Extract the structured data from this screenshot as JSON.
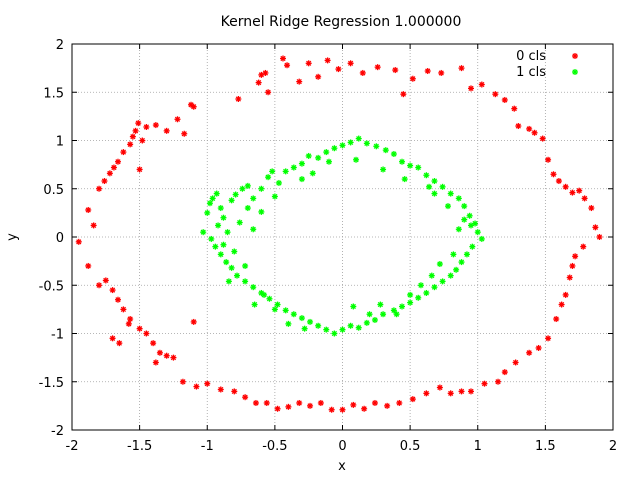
{
  "chart_data": {
    "type": "scatter",
    "title": "Kernel Ridge Regression 1.000000",
    "xlabel": "x",
    "ylabel": "y",
    "xlim": [
      -2,
      2
    ],
    "ylim": [
      -2,
      2
    ],
    "xticks": [
      "-2",
      "-1.5",
      "-1",
      "-0.5",
      "0",
      "0.5",
      "1",
      "1.5",
      "2"
    ],
    "yticks": [
      "-2",
      "-1.5",
      "-1",
      "-0.5",
      "0",
      "0.5",
      "1",
      "1.5",
      "2"
    ],
    "grid": true,
    "legend_position": "top-right",
    "series": [
      {
        "name": "0 cls",
        "color": "#ff0000",
        "marker": "star",
        "points": [
          [
            -1.95,
            -0.05
          ],
          [
            -1.88,
            0.28
          ],
          [
            -1.84,
            0.12
          ],
          [
            -1.8,
            0.5
          ],
          [
            -1.76,
            0.58
          ],
          [
            -1.72,
            0.66
          ],
          [
            -1.69,
            0.72
          ],
          [
            -1.66,
            0.78
          ],
          [
            -1.62,
            0.88
          ],
          [
            -1.57,
            0.96
          ],
          [
            -1.55,
            1.04
          ],
          [
            -1.53,
            1.1
          ],
          [
            -1.51,
            1.18
          ],
          [
            -1.48,
            1.0
          ],
          [
            -1.5,
            0.7
          ],
          [
            -1.45,
            1.14
          ],
          [
            -1.38,
            1.16
          ],
          [
            -1.3,
            1.1
          ],
          [
            -1.22,
            1.22
          ],
          [
            -1.17,
            1.07
          ],
          [
            -1.1,
            1.35
          ],
          [
            -1.12,
            1.37
          ],
          [
            -0.77,
            1.43
          ],
          [
            -0.62,
            1.6
          ],
          [
            -0.6,
            1.68
          ],
          [
            -0.57,
            1.7
          ],
          [
            -0.55,
            1.5
          ],
          [
            -0.44,
            1.85
          ],
          [
            -0.41,
            1.78
          ],
          [
            -0.32,
            1.61
          ],
          [
            -0.25,
            1.8
          ],
          [
            -0.18,
            1.66
          ],
          [
            -0.11,
            1.83
          ],
          [
            -0.03,
            1.74
          ],
          [
            0.06,
            1.8
          ],
          [
            0.15,
            1.7
          ],
          [
            0.26,
            1.76
          ],
          [
            0.39,
            1.73
          ],
          [
            0.45,
            1.48
          ],
          [
            0.52,
            1.64
          ],
          [
            0.63,
            1.72
          ],
          [
            0.73,
            1.7
          ],
          [
            0.88,
            1.75
          ],
          [
            0.95,
            1.54
          ],
          [
            1.03,
            1.58
          ],
          [
            1.13,
            1.48
          ],
          [
            1.2,
            1.42
          ],
          [
            1.27,
            1.33
          ],
          [
            1.3,
            1.15
          ],
          [
            1.38,
            1.12
          ],
          [
            1.42,
            1.08
          ],
          [
            1.48,
            1.02
          ],
          [
            1.52,
            0.8
          ],
          [
            1.56,
            0.65
          ],
          [
            1.6,
            0.58
          ],
          [
            1.65,
            0.52
          ],
          [
            1.7,
            0.46
          ],
          [
            1.75,
            0.48
          ],
          [
            1.79,
            0.4
          ],
          [
            1.84,
            0.3
          ],
          [
            1.87,
            0.1
          ],
          [
            1.9,
            0.0
          ],
          [
            1.78,
            -0.1
          ],
          [
            1.72,
            -0.2
          ],
          [
            1.7,
            -0.3
          ],
          [
            1.68,
            -0.42
          ],
          [
            1.65,
            -0.6
          ],
          [
            1.62,
            -0.7
          ],
          [
            1.58,
            -0.85
          ],
          [
            1.52,
            -1.05
          ],
          [
            1.45,
            -1.15
          ],
          [
            1.38,
            -1.2
          ],
          [
            1.28,
            -1.3
          ],
          [
            1.2,
            -1.4
          ],
          [
            1.15,
            -1.5
          ],
          [
            1.05,
            -1.52
          ],
          [
            0.95,
            -1.6
          ],
          [
            0.88,
            -1.6
          ],
          [
            0.8,
            -1.62
          ],
          [
            0.72,
            -1.56
          ],
          [
            0.62,
            -1.62
          ],
          [
            0.52,
            -1.68
          ],
          [
            0.42,
            -1.72
          ],
          [
            0.33,
            -1.75
          ],
          [
            0.24,
            -1.72
          ],
          [
            0.16,
            -1.78
          ],
          [
            0.08,
            -1.74
          ],
          [
            0.0,
            -1.79
          ],
          [
            -0.08,
            -1.79
          ],
          [
            -0.16,
            -1.72
          ],
          [
            -0.24,
            -1.75
          ],
          [
            -0.32,
            -1.72
          ],
          [
            -0.4,
            -1.76
          ],
          [
            -0.48,
            -1.78
          ],
          [
            -0.56,
            -1.72
          ],
          [
            -0.64,
            -1.72
          ],
          [
            -0.72,
            -1.66
          ],
          [
            -0.8,
            -1.6
          ],
          [
            -0.9,
            -1.58
          ],
          [
            -1.0,
            -1.52
          ],
          [
            -1.08,
            -1.55
          ],
          [
            -1.18,
            -1.5
          ],
          [
            -1.25,
            -1.25
          ],
          [
            -1.3,
            -1.23
          ],
          [
            -1.35,
            -1.2
          ],
          [
            -1.4,
            -1.1
          ],
          [
            -1.45,
            -1.0
          ],
          [
            -1.5,
            -0.95
          ],
          [
            -1.57,
            -0.85
          ],
          [
            -1.62,
            -0.75
          ],
          [
            -1.66,
            -0.65
          ],
          [
            -1.7,
            -0.55
          ],
          [
            -1.75,
            -0.45
          ],
          [
            -1.8,
            -0.5
          ],
          [
            -1.88,
            -0.3
          ],
          [
            -1.7,
            -1.05
          ],
          [
            -1.65,
            -1.1
          ],
          [
            -1.58,
            -0.9
          ],
          [
            -1.38,
            -1.3
          ],
          [
            -1.1,
            -0.88
          ]
        ]
      },
      {
        "name": "1 cls",
        "color": "#00ff00",
        "marker": "star",
        "points": [
          [
            -1.03,
            0.05
          ],
          [
            -1.0,
            0.25
          ],
          [
            -0.98,
            0.35
          ],
          [
            -0.96,
            0.4
          ],
          [
            -0.93,
            0.45
          ],
          [
            -0.9,
            0.3
          ],
          [
            -0.88,
            0.2
          ],
          [
            -0.85,
            0.05
          ],
          [
            -0.82,
            0.38
          ],
          [
            -0.79,
            0.44
          ],
          [
            -0.74,
            0.5
          ],
          [
            -0.7,
            0.53
          ],
          [
            -0.66,
            0.4
          ],
          [
            -0.6,
            0.5
          ],
          [
            -0.55,
            0.62
          ],
          [
            -0.52,
            0.68
          ],
          [
            -0.47,
            0.56
          ],
          [
            -0.42,
            0.68
          ],
          [
            -0.36,
            0.72
          ],
          [
            -0.3,
            0.76
          ],
          [
            -0.25,
            0.84
          ],
          [
            -0.18,
            0.82
          ],
          [
            -0.12,
            0.88
          ],
          [
            -0.06,
            0.92
          ],
          [
            0.0,
            0.95
          ],
          [
            0.06,
            0.98
          ],
          [
            0.12,
            1.02
          ],
          [
            0.18,
            0.97
          ],
          [
            0.25,
            0.94
          ],
          [
            0.32,
            0.9
          ],
          [
            0.38,
            0.86
          ],
          [
            0.44,
            0.78
          ],
          [
            0.5,
            0.74
          ],
          [
            0.56,
            0.72
          ],
          [
            0.62,
            0.64
          ],
          [
            0.68,
            0.58
          ],
          [
            0.74,
            0.52
          ],
          [
            0.8,
            0.45
          ],
          [
            0.86,
            0.4
          ],
          [
            0.9,
            0.32
          ],
          [
            0.94,
            0.22
          ],
          [
            0.98,
            0.14
          ],
          [
            1.0,
            0.05
          ],
          [
            1.03,
            -0.02
          ],
          [
            0.96,
            -0.1
          ],
          [
            0.92,
            -0.18
          ],
          [
            0.88,
            -0.26
          ],
          [
            0.84,
            -0.34
          ],
          [
            0.8,
            -0.4
          ],
          [
            0.74,
            -0.46
          ],
          [
            0.68,
            -0.52
          ],
          [
            0.62,
            -0.58
          ],
          [
            0.56,
            -0.63
          ],
          [
            0.5,
            -0.68
          ],
          [
            0.44,
            -0.72
          ],
          [
            0.38,
            -0.76
          ],
          [
            0.3,
            -0.8
          ],
          [
            0.24,
            -0.86
          ],
          [
            0.18,
            -0.89
          ],
          [
            0.12,
            -0.94
          ],
          [
            0.06,
            -0.92
          ],
          [
            0.0,
            -0.96
          ],
          [
            -0.06,
            -1.0
          ],
          [
            -0.12,
            -0.96
          ],
          [
            -0.18,
            -0.92
          ],
          [
            -0.24,
            -0.88
          ],
          [
            -0.3,
            -0.84
          ],
          [
            -0.36,
            -0.8
          ],
          [
            -0.42,
            -0.76
          ],
          [
            -0.48,
            -0.7
          ],
          [
            -0.54,
            -0.64
          ],
          [
            -0.6,
            -0.58
          ],
          [
            -0.66,
            -0.52
          ],
          [
            -0.72,
            -0.46
          ],
          [
            -0.78,
            -0.4
          ],
          [
            -0.82,
            -0.32
          ],
          [
            -0.86,
            -0.26
          ],
          [
            -0.9,
            -0.18
          ],
          [
            -0.94,
            -0.1
          ],
          [
            -0.97,
            -0.02
          ],
          [
            -0.7,
            0.3
          ],
          [
            -0.76,
            0.15
          ],
          [
            -0.8,
            -0.15
          ],
          [
            -0.72,
            -0.3
          ],
          [
            -0.65,
            -0.7
          ],
          [
            -0.5,
            -0.75
          ],
          [
            -0.4,
            -0.9
          ],
          [
            -0.28,
            -0.95
          ],
          [
            0.08,
            -0.72
          ],
          [
            0.28,
            -0.7
          ],
          [
            0.4,
            -0.8
          ],
          [
            0.58,
            -0.5
          ],
          [
            0.66,
            -0.4
          ],
          [
            0.72,
            -0.28
          ],
          [
            0.82,
            -0.18
          ],
          [
            0.86,
            0.08
          ],
          [
            0.9,
            0.18
          ],
          [
            0.78,
            0.32
          ],
          [
            0.68,
            0.45
          ],
          [
            0.46,
            0.6
          ],
          [
            0.3,
            0.7
          ],
          [
            0.1,
            0.8
          ],
          [
            -0.1,
            0.78
          ],
          [
            -0.3,
            0.6
          ],
          [
            -0.5,
            0.42
          ],
          [
            -0.6,
            0.26
          ],
          [
            -0.66,
            0.08
          ],
          [
            -0.88,
            -0.08
          ],
          [
            -0.92,
            0.12
          ],
          [
            -0.84,
            -0.46
          ],
          [
            -0.58,
            -0.6
          ],
          [
            0.2,
            -0.8
          ],
          [
            0.5,
            -0.6
          ],
          [
            0.95,
            0.12
          ],
          [
            0.64,
            0.52
          ],
          [
            -0.22,
            0.66
          ]
        ]
      }
    ]
  }
}
